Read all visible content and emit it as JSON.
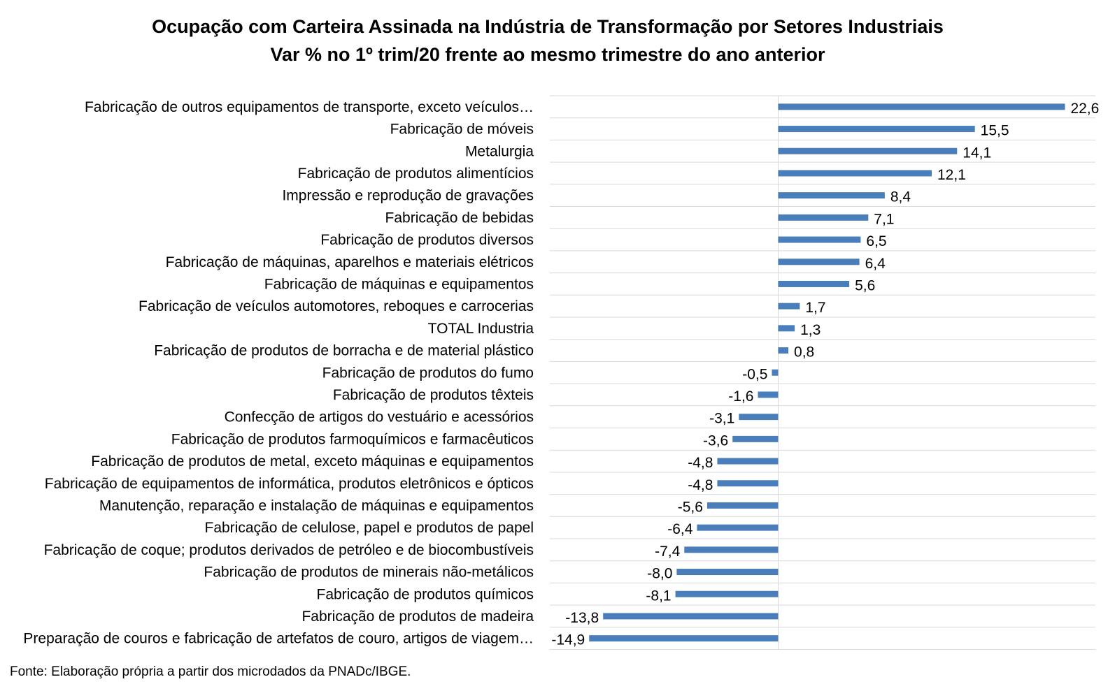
{
  "chart_data": {
    "type": "bar",
    "orientation": "horizontal",
    "title": "Ocupação com Carteira Assinada na Indústria de Transformação por Setores Industriais",
    "subtitle": "Var % no 1º trim/20 frente ao mesmo trimestre do ano anterior",
    "categories": [
      "Fabricação de outros equipamentos de transporte, exceto veículos…",
      "Fabricação de móveis",
      "Metalurgia",
      "Fabricação de produtos alimentícios",
      "Impressão e reprodução de gravações",
      "Fabricação de bebidas",
      "Fabricação de produtos diversos",
      "Fabricação de máquinas, aparelhos e materiais elétricos",
      "Fabricação de máquinas e equipamentos",
      "Fabricação de veículos automotores, reboques e carrocerias",
      "TOTAL Industria",
      "Fabricação de produtos de borracha e de material plástico",
      "Fabricação de produtos do fumo",
      "Fabricação de produtos têxteis",
      "Confecção de artigos do vestuário e acessórios",
      "Fabricação de produtos farmoquímicos e farmacêuticos",
      "Fabricação de produtos de metal, exceto máquinas e equipamentos",
      "Fabricação de equipamentos de informática, produtos eletrônicos e ópticos",
      "Manutenção, reparação e instalação de máquinas e equipamentos",
      "Fabricação de celulose, papel e produtos de papel",
      "Fabricação de coque; produtos derivados de petróleo e de biocombustíveis",
      "Fabricação de produtos de minerais não-metálicos",
      "Fabricação de produtos químicos",
      "Fabricação de produtos de madeira",
      "Preparação de couros e fabricação de artefatos de couro, artigos de viagem…"
    ],
    "values": [
      22.6,
      15.5,
      14.1,
      12.1,
      8.4,
      7.1,
      6.5,
      6.4,
      5.6,
      1.7,
      1.3,
      0.8,
      -0.5,
      -1.6,
      -3.1,
      -3.6,
      -4.8,
      -4.8,
      -5.6,
      -6.4,
      -7.4,
      -8.0,
      -8.1,
      -13.8,
      -14.9
    ],
    "value_labels": [
      "22,6",
      "15,5",
      "14,1",
      "12,1",
      "8,4",
      "7,1",
      "6,5",
      "6,4",
      "5,6",
      "1,7",
      "1,3",
      "0,8",
      "-0,5",
      "-1,6",
      "-3,1",
      "-3,6",
      "-4,8",
      "-4,8",
      "-5,6",
      "-6,4",
      "-7,4",
      "-8,0",
      "-8,1",
      "-13,8",
      "-14,9"
    ],
    "xlim": [
      -18,
      25
    ],
    "bar_color": "#4a7ebb",
    "grid": true,
    "grid_color": "#d9d9d9"
  },
  "source": "Fonte: Elaboração própria a partir dos microdados da PNADc/IBGE."
}
